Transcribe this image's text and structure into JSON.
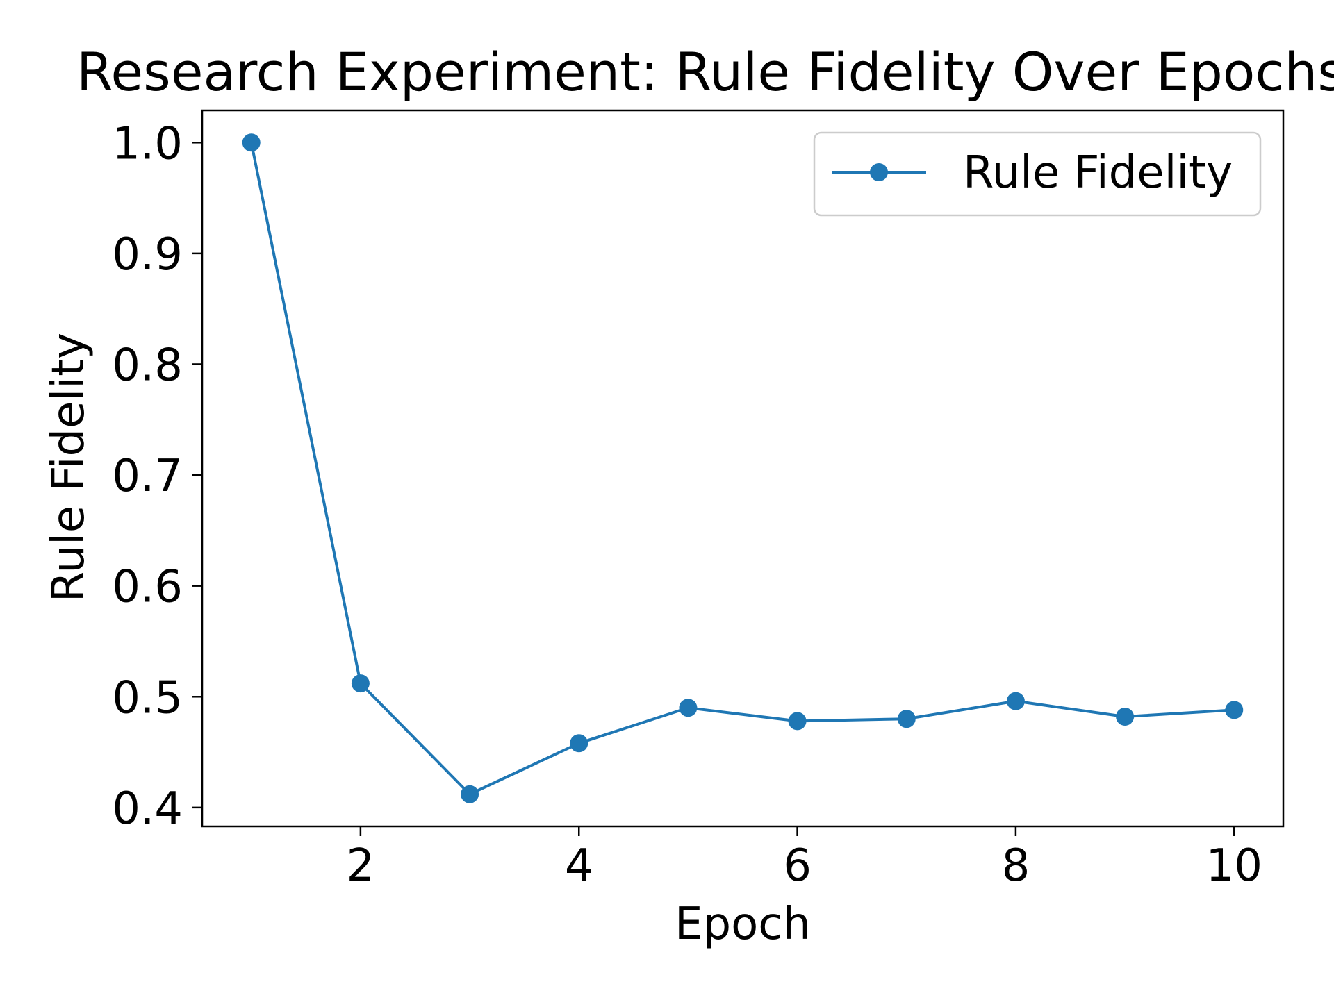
{
  "chart_data": {
    "type": "line",
    "title": "Research Experiment: Rule Fidelity Over Epochs",
    "xlabel": "Epoch",
    "ylabel": "Rule Fidelity",
    "x": [
      1,
      2,
      3,
      4,
      5,
      6,
      7,
      8,
      9,
      10
    ],
    "series": [
      {
        "name": "Rule Fidelity",
        "values": [
          1.0,
          0.512,
          0.412,
          0.458,
          0.49,
          0.478,
          0.48,
          0.496,
          0.482,
          0.488
        ],
        "color": "#1f77b4",
        "marker": "circle"
      }
    ],
    "xlim": [
      0.55,
      10.45
    ],
    "ylim": [
      0.383,
      1.029
    ],
    "xticks": [
      2,
      4,
      6,
      8,
      10
    ],
    "xtick_labels": [
      "2",
      "4",
      "6",
      "8",
      "10"
    ],
    "yticks": [
      0.4,
      0.5,
      0.6,
      0.7,
      0.8,
      0.9,
      1.0
    ],
    "ytick_labels": [
      "0.4",
      "0.5",
      "0.6",
      "0.7",
      "0.8",
      "0.9",
      "1.0"
    ],
    "grid": false,
    "legend_position": "top-right"
  }
}
